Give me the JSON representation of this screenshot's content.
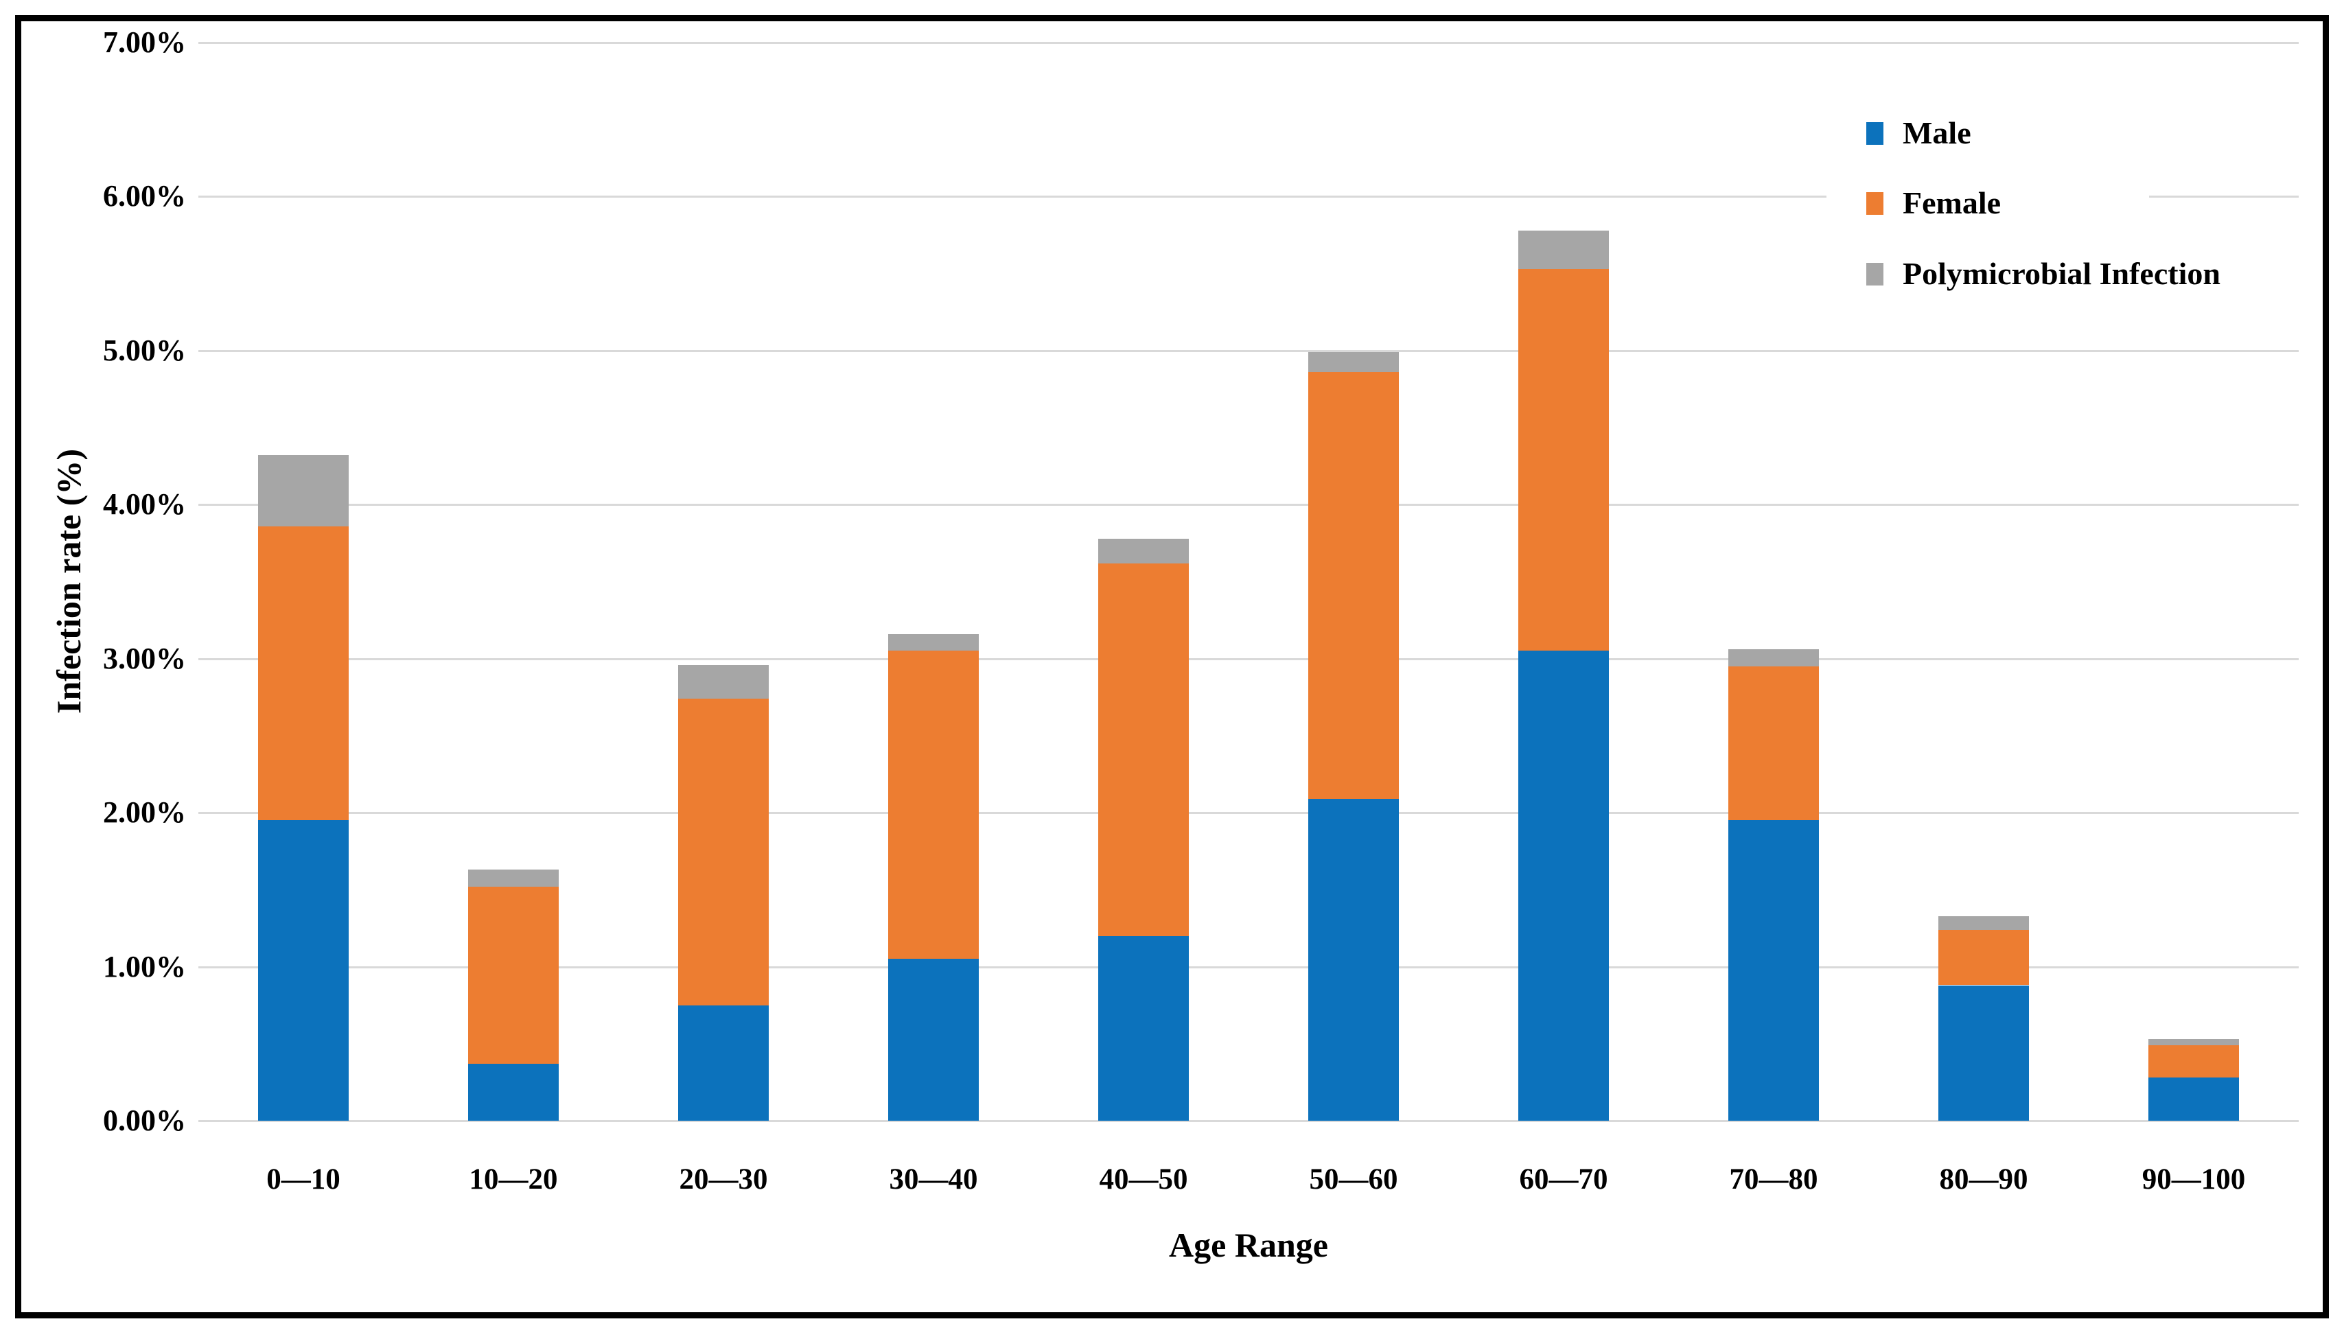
{
  "chart_data": {
    "type": "bar",
    "stacked": true,
    "categories": [
      "0—10",
      "10—20",
      "20—30",
      "30—40",
      "40—50",
      "50—60",
      "60—70",
      "70—80",
      "80—90",
      "90—100"
    ],
    "series": [
      {
        "name": "Male",
        "color": "#0c72bc",
        "values": [
          1.95,
          0.37,
          0.75,
          1.05,
          1.2,
          2.09,
          3.05,
          1.95,
          0.88,
          0.28
        ]
      },
      {
        "name": "Female",
        "color": "#ed7d31",
        "values": [
          1.91,
          1.15,
          1.99,
          2.0,
          2.42,
          2.77,
          2.48,
          1.0,
          0.36,
          0.21
        ]
      },
      {
        "name": "Polymicrobial Infection",
        "color": "#a6a6a6",
        "values": [
          0.46,
          0.11,
          0.22,
          0.11,
          0.16,
          0.13,
          0.25,
          0.11,
          0.09,
          0.04
        ]
      }
    ],
    "stack_totals": [
      4.32,
      1.63,
      2.96,
      3.16,
      3.78,
      4.99,
      5.78,
      3.06,
      1.33,
      0.53
    ],
    "xlabel": "Age Range",
    "ylabel": "Infection rate (%)",
    "ylim": [
      0,
      7
    ],
    "ytick_step": 1,
    "ytick_labels": [
      "0.00%",
      "1.00%",
      "2.00%",
      "3.00%",
      "4.00%",
      "5.00%",
      "6.00%",
      "7.00%"
    ],
    "grid": true,
    "gridline_color": "#d9d9d9",
    "legend_position": "top-right"
  }
}
